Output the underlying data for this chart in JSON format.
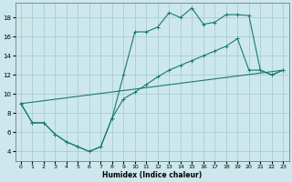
{
  "xlabel": "Humidex (Indice chaleur)",
  "bg_color": "#cce8ec",
  "grid_color": "#aaccd4",
  "line_color": "#1a7a6a",
  "xlim": [
    -0.5,
    23.5
  ],
  "ylim": [
    3,
    19.5
  ],
  "xticks": [
    0,
    1,
    2,
    3,
    4,
    5,
    6,
    7,
    8,
    9,
    10,
    11,
    12,
    13,
    14,
    15,
    16,
    17,
    18,
    19,
    20,
    21,
    22,
    23
  ],
  "yticks": [
    4,
    6,
    8,
    10,
    12,
    14,
    16,
    18
  ],
  "line1_x": [
    0,
    1,
    2,
    3,
    4,
    5,
    6,
    7,
    8,
    9,
    10,
    11,
    12,
    13,
    14,
    15,
    16,
    17,
    18,
    19,
    20,
    21,
    22,
    23
  ],
  "line1_y": [
    9,
    7,
    7,
    5.8,
    5,
    4.5,
    4,
    4.5,
    7.5,
    12,
    16.5,
    16.5,
    17,
    18.5,
    18,
    19,
    17.3,
    17.5,
    18.3,
    18.3,
    18.2,
    12.5,
    12,
    12.5
  ],
  "line2_x": [
    0,
    1,
    2,
    3,
    4,
    5,
    6,
    7,
    8,
    9,
    10,
    11,
    12,
    13,
    14,
    15,
    16,
    17,
    18,
    19,
    20,
    21,
    22,
    23
  ],
  "line2_y": [
    9,
    7,
    7,
    5.8,
    5,
    4.5,
    4,
    4.5,
    7.5,
    9.5,
    10.2,
    11,
    11.8,
    12.5,
    13,
    13.5,
    14,
    14.5,
    15,
    15.8,
    12.5,
    12.5,
    12,
    12.5
  ],
  "line3_x": [
    0,
    23
  ],
  "line3_y": [
    9,
    12.5
  ]
}
